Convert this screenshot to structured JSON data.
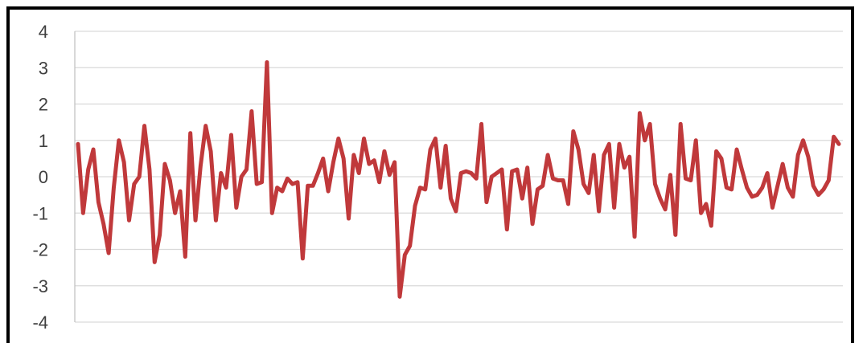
{
  "chart_data": {
    "type": "line",
    "title": "",
    "xlabel": "",
    "ylabel": "",
    "ylim": [
      -4,
      4
    ],
    "yticks": [
      4,
      3,
      2,
      1,
      0,
      -1,
      -2,
      -3,
      -4
    ],
    "grid": true,
    "legend": "none",
    "colors": {
      "line": "#C0393B",
      "grid": "#D9D9D9",
      "axis": "#BFBFBF"
    },
    "series": [
      {
        "values": [
          0.9,
          -1.0,
          0.2,
          0.75,
          -0.7,
          -1.3,
          -2.1,
          -0.3,
          1.0,
          0.4,
          -1.2,
          -0.2,
          0.0,
          1.4,
          0.2,
          -2.35,
          -1.6,
          0.35,
          -0.1,
          -1.0,
          -0.4,
          -2.2,
          1.2,
          -1.2,
          0.3,
          1.4,
          0.7,
          -1.2,
          0.1,
          -0.3,
          1.15,
          -0.85,
          0.0,
          0.2,
          1.8,
          -0.2,
          -0.15,
          3.15,
          -1.0,
          -0.3,
          -0.4,
          -0.05,
          -0.2,
          -0.15,
          -2.25,
          -0.25,
          -0.25,
          0.1,
          0.5,
          -0.4,
          0.4,
          1.05,
          0.5,
          -1.15,
          0.6,
          0.1,
          1.05,
          0.35,
          0.45,
          -0.15,
          0.7,
          0.05,
          0.4,
          -3.3,
          -2.15,
          -1.9,
          -0.8,
          -0.3,
          -0.35,
          0.75,
          1.05,
          -0.3,
          0.85,
          -0.6,
          -0.95,
          0.1,
          0.15,
          0.1,
          -0.05,
          1.45,
          -0.7,
          0.0,
          0.1,
          0.2,
          -1.45,
          0.15,
          0.2,
          -0.6,
          0.25,
          -1.3,
          -0.35,
          -0.25,
          0.6,
          -0.05,
          -0.1,
          -0.1,
          -0.75,
          1.25,
          0.75,
          -0.2,
          -0.45,
          0.6,
          -0.95,
          0.6,
          0.9,
          -0.85,
          0.9,
          0.25,
          0.55,
          -1.65,
          1.75,
          1.0,
          1.45,
          -0.2,
          -0.6,
          -0.9,
          0.05,
          -1.6,
          1.45,
          -0.05,
          -0.1,
          1.0,
          -1.0,
          -0.75,
          -1.35,
          0.7,
          0.5,
          -0.3,
          -0.35,
          0.75,
          0.2,
          -0.3,
          -0.55,
          -0.5,
          -0.3,
          0.1,
          -0.85,
          -0.25,
          0.35,
          -0.3,
          -0.55,
          0.6,
          1.0,
          0.55,
          -0.25,
          -0.5,
          -0.35,
          -0.1,
          1.1,
          0.9
        ]
      }
    ]
  }
}
